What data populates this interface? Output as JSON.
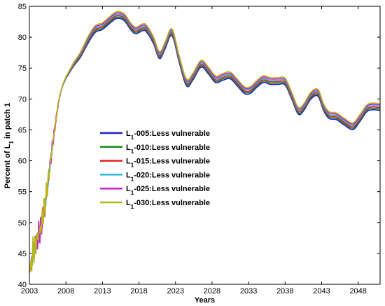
{
  "chart_data": {
    "type": "line",
    "xlabel": "Years",
    "ylabel": {
      "pre": "Percent of L",
      "sub": "1",
      "post": " in patch 1"
    },
    "xlim": [
      2003,
      2051
    ],
    "ylim": [
      40,
      85
    ],
    "xticks": [
      2003,
      2008,
      2013,
      2018,
      2023,
      2028,
      2033,
      2038,
      2043,
      2048
    ],
    "yticks": [
      40,
      45,
      50,
      55,
      60,
      65,
      70,
      75,
      80,
      85
    ],
    "legend_position": "center-left",
    "base_curve": {
      "x": [
        2003,
        2003.5,
        2004,
        2004.5,
        2005,
        2005.5,
        2006,
        2006.5,
        2007,
        2007.5,
        2008,
        2009,
        2010,
        2011,
        2012,
        2013,
        2014,
        2015,
        2016,
        2017,
        2017.6,
        2018.5,
        2019,
        2020,
        2020.8,
        2021.5,
        2022.5,
        2023.5,
        2024.5,
        2025.3,
        2026.5,
        2027.5,
        2028.5,
        2029.5,
        2030.5,
        2031.5,
        2032.5,
        2033.3,
        2034,
        2035,
        2036,
        2037,
        2038,
        2039,
        2039.8,
        2040.5,
        2041.5,
        2042.5,
        2043.3,
        2044,
        2045,
        2046,
        2047.3,
        2048.3,
        2049.2,
        2050,
        2051
      ],
      "y": [
        42,
        45,
        47,
        49,
        52,
        56,
        61,
        65.5,
        69.5,
        72,
        73.5,
        75.5,
        77.2,
        79.5,
        81.3,
        81.8,
        82.8,
        83.6,
        83.2,
        81.6,
        81.1,
        81.6,
        81.4,
        79.5,
        77.1,
        78.5,
        80.8,
        76.5,
        72.7,
        73.5,
        75.7,
        74.6,
        73.2,
        73.6,
        73.8,
        72.6,
        71.4,
        71.5,
        72.3,
        73.2,
        72.9,
        72.9,
        72.8,
        70.3,
        68.1,
        68.6,
        70.5,
        71.0,
        68.6,
        67.4,
        67.2,
        66.4,
        65.6,
        67.0,
        68.5,
        68.8,
        68.7
      ]
    },
    "early_noise_amplitude": [
      0,
      3,
      2.5,
      3,
      2.5,
      2,
      1.5,
      0.8,
      0.3,
      0,
      0
    ],
    "series": [
      {
        "name": {
          "pre": "L",
          "sub": "1",
          "post": "-005:Less      vulnerable"
        },
        "color": "#1f1fd0",
        "offset": -0.55,
        "noise_scale": 0.2
      },
      {
        "name": {
          "pre": "L",
          "sub": "1",
          "post": "-010:Less      vulnerable"
        },
        "color": "#1a8a1a",
        "offset": -0.33,
        "noise_scale": 0.35
      },
      {
        "name": {
          "pre": "L",
          "sub": "1",
          "post": "-015:Less      vulnerable"
        },
        "color": "#e52020",
        "offset": -0.11,
        "noise_scale": 0.5
      },
      {
        "name": {
          "pre": "L",
          "sub": "1",
          "post": "-020:Less      vulnerable"
        },
        "color": "#28b8d8",
        "offset": 0.11,
        "noise_scale": 0.65
      },
      {
        "name": {
          "pre": "L",
          "sub": "1",
          "post": "-025:Less      vulnerable"
        },
        "color": "#c020c8",
        "offset": 0.33,
        "noise_scale": 0.82
      },
      {
        "name": {
          "pre": "L",
          "sub": "1",
          "post": "-030:Less      vulnerable"
        },
        "color": "#b8b818",
        "offset": 0.55,
        "noise_scale": 1.0
      }
    ]
  }
}
